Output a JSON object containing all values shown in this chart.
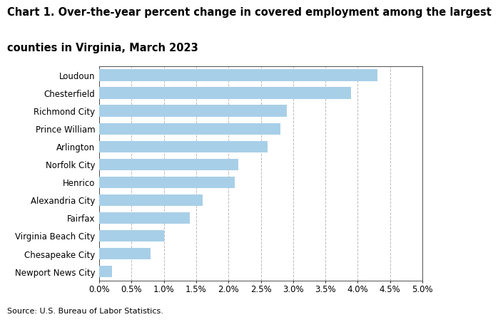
{
  "title_line1": "Chart 1. Over-the-year percent change in covered employment among the largest",
  "title_line2": "counties in Virginia, March 2023",
  "categories": [
    "Newport News City",
    "Chesapeake City",
    "Virginia Beach City",
    "Fairfax",
    "Alexandria City",
    "Henrico",
    "Norfolk City",
    "Arlington",
    "Prince William",
    "Richmond City",
    "Chesterfield",
    "Loudoun"
  ],
  "values": [
    0.002,
    0.008,
    0.01,
    0.014,
    0.016,
    0.021,
    0.0215,
    0.026,
    0.028,
    0.029,
    0.039,
    0.043
  ],
  "bar_color": "#a8cfe8",
  "xlim": [
    0,
    0.05
  ],
  "xticks": [
    0.0,
    0.005,
    0.01,
    0.015,
    0.02,
    0.025,
    0.03,
    0.035,
    0.04,
    0.045,
    0.05
  ],
  "source": "Source: U.S. Bureau of Labor Statistics.",
  "title_fontsize": 10.5,
  "tick_fontsize": 8.5,
  "source_fontsize": 8,
  "bar_height": 0.65,
  "grid_color": "#bbbbbb",
  "spine_color": "#333333",
  "background_color": "#ffffff"
}
